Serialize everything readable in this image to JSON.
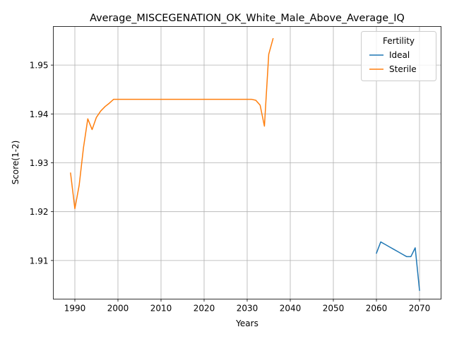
{
  "chart_data": {
    "type": "line",
    "title": "Average_MISCEGENATION_OK_White_Male_Above_Average_IQ",
    "xlabel": "Years",
    "ylabel": "Score(1-2)",
    "xlim": [
      1985,
      2075
    ],
    "ylim": [
      1.9021,
      1.9579
    ],
    "xticks": [
      1990,
      2000,
      2010,
      2020,
      2030,
      2040,
      2050,
      2060,
      2070
    ],
    "yticks": [
      1.91,
      1.92,
      1.93,
      1.94,
      1.95
    ],
    "ytick_labels": [
      "1.91",
      "1.92",
      "1.93",
      "1.94",
      "1.95"
    ],
    "grid": true,
    "legend": {
      "title": "Fertility",
      "position": "top-right"
    },
    "series": [
      {
        "name": "Ideal",
        "color": "#1f77b4",
        "x": [
          2060,
          2061,
          2062,
          2063,
          2064,
          2065,
          2066,
          2067,
          2068,
          2069,
          2070
        ],
        "y": [
          1.9115,
          1.9138,
          1.9133,
          1.9128,
          1.9123,
          1.9118,
          1.9113,
          1.9108,
          1.9108,
          1.9126,
          1.9039
        ]
      },
      {
        "name": "Sterile",
        "color": "#ff7f0e",
        "x": [
          1989,
          1990,
          1991,
          1992,
          1993,
          1994,
          1995,
          1996,
          1997,
          1998,
          1999,
          2000,
          2005,
          2010,
          2015,
          2020,
          2025,
          2030,
          2031,
          2032,
          2033,
          2034,
          2035,
          2036
        ],
        "y": [
          1.9279,
          1.9206,
          1.9254,
          1.9331,
          1.939,
          1.9368,
          1.9393,
          1.9406,
          1.9415,
          1.9422,
          1.943,
          1.943,
          1.943,
          1.943,
          1.943,
          1.943,
          1.943,
          1.943,
          1.943,
          1.9428,
          1.9418,
          1.9375,
          1.9522,
          1.9554
        ]
      }
    ]
  }
}
